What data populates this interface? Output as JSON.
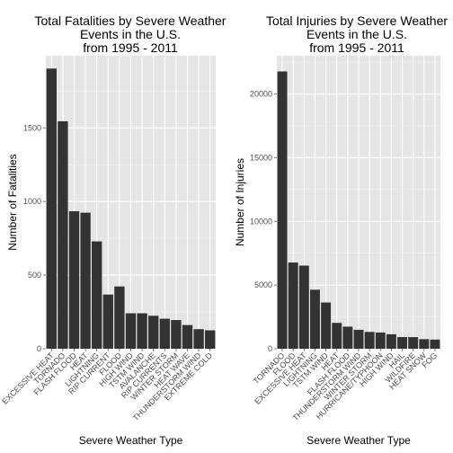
{
  "chart_data": [
    {
      "type": "bar",
      "title_lines": [
        "Total Fatalities by Severe Weather",
        "Events in the U.S.",
        "from 1995 - 2011"
      ],
      "xlabel": "Severe Weather Type",
      "ylabel": "Number of Fatalities",
      "ylim": [
        0,
        1990
      ],
      "yticks": [
        0,
        500,
        1000,
        1500
      ],
      "ytick_labels": [
        "0",
        "500",
        "1000",
        "1500"
      ],
      "grid": true,
      "categories": [
        "EXCESSIVE HEAT",
        "TORNADO",
        "FLASH FLOOD",
        "HEAT",
        "LIGHTNING",
        "RIP CURRENT",
        "FLOOD",
        "HIGH WIND",
        "TSTM WIND",
        "AVALANCHE",
        "RIP CURRENTS",
        "WINTER STORM",
        "HEAT WAVE",
        "THUNDERSTORM WIND",
        "EXTREME COLD"
      ],
      "values": [
        1903,
        1545,
        934,
        924,
        729,
        368,
        423,
        241,
        241,
        224,
        204,
        195,
        161,
        133,
        125
      ],
      "colors": {
        "panel": "#e5e5e5",
        "grid_major": "#ffffff",
        "grid_minor": "#f2f2f2",
        "bar": "#333333",
        "text": "#000000",
        "tick_text": "#4d4d4d"
      }
    },
    {
      "type": "bar",
      "title_lines": [
        "Total Injuries by Severe Weather",
        "Events in the U.S.",
        "from 1995 - 2011"
      ],
      "xlabel": "Severe Weather Type",
      "ylabel": "Number of Injuries",
      "ylim": [
        0,
        23000
      ],
      "yticks": [
        0,
        5000,
        10000,
        15000,
        20000
      ],
      "ytick_labels": [
        "0",
        "5000",
        "10000",
        "15000",
        "20000"
      ],
      "grid": true,
      "categories": [
        "TORNADO",
        "FLOOD",
        "EXCESSIVE HEAT",
        "LIGHTNING",
        "TSTM WIND",
        "HEAT",
        "FLASH FLOOD",
        "THUNDERSTORM WIND",
        "WINTER STORM",
        "HURRICANE/TYPHOON",
        "HIGH WIND",
        "HAIL",
        "WILDFIRE",
        "HEAT SNOW",
        "FOG"
      ],
      "values": [
        21765,
        6769,
        6525,
        4631,
        3630,
        2030,
        1734,
        1488,
        1321,
        1275,
        1137,
        916,
        911,
        751,
        718
      ],
      "colors": {
        "panel": "#e5e5e5",
        "grid_major": "#ffffff",
        "grid_minor": "#f2f2f2",
        "bar": "#333333",
        "text": "#000000",
        "tick_text": "#4d4d4d"
      }
    }
  ]
}
